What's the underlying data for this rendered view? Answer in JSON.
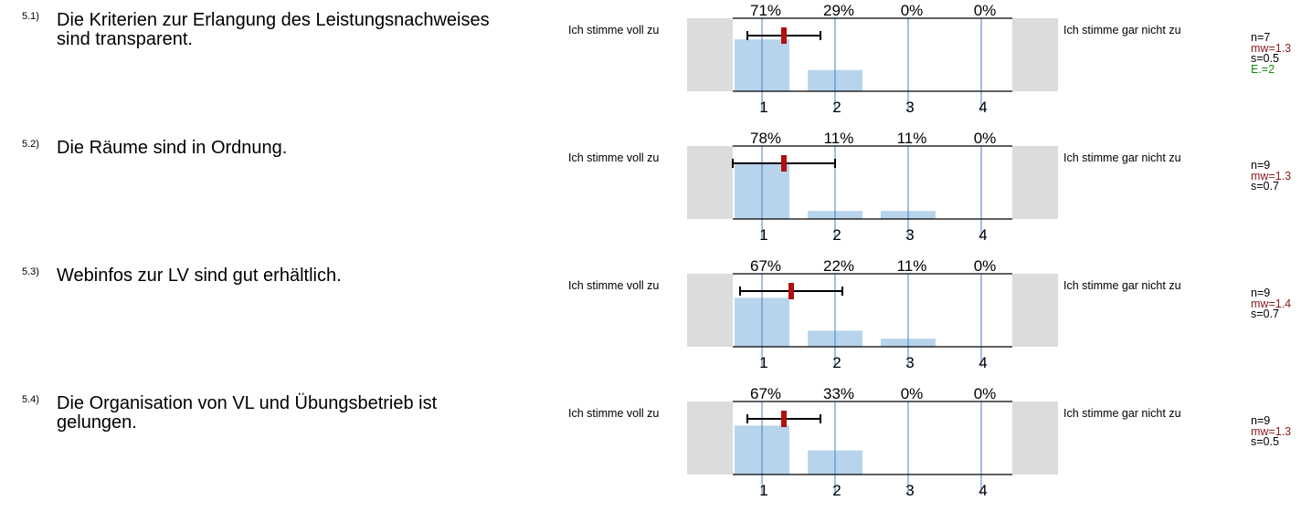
{
  "colors": {
    "bar": "#b7d4ec",
    "gray_box": "#dcdcdc",
    "grid_line": "#4a7fc0",
    "mean_marker": "#b01010",
    "mw_text": "#8b1a1a",
    "e_text": "#1a8c1a"
  },
  "scale": {
    "left_label": "Ich stimme voll zu",
    "right_label": "Ich stimme gar nicht zu",
    "ticks": [
      "1",
      "2",
      "3",
      "4"
    ]
  },
  "chart_data": [
    {
      "type": "bar",
      "number": "5.1)",
      "question": "Die Kriterien zur Erlangung des Leistungsnachweises sind transparent.",
      "categories": [
        "1",
        "2",
        "3",
        "4"
      ],
      "values": [
        71,
        29,
        0,
        0
      ],
      "labels": [
        "71%",
        "29%",
        "0%",
        "0%"
      ],
      "mean": 1.3,
      "sd": 0.5,
      "ylim": [
        0,
        100
      ],
      "stats": {
        "n": "n=7",
        "mw": "mw=1.3",
        "s": "s=0.5",
        "e": "E.=2"
      }
    },
    {
      "type": "bar",
      "number": "5.2)",
      "question": "Die Räume sind in Ordnung.",
      "categories": [
        "1",
        "2",
        "3",
        "4"
      ],
      "values": [
        78,
        11,
        11,
        0
      ],
      "labels": [
        "78%",
        "11%",
        "11%",
        "0%"
      ],
      "mean": 1.3,
      "sd": 0.7,
      "ylim": [
        0,
        100
      ],
      "stats": {
        "n": "n=9",
        "mw": "mw=1.3",
        "s": "s=0.7"
      }
    },
    {
      "type": "bar",
      "number": "5.3)",
      "question": "Webinfos zur LV sind gut erhältlich.",
      "categories": [
        "1",
        "2",
        "3",
        "4"
      ],
      "values": [
        67,
        22,
        11,
        0
      ],
      "labels": [
        "67%",
        "22%",
        "11%",
        "0%"
      ],
      "mean": 1.4,
      "sd": 0.7,
      "ylim": [
        0,
        100
      ],
      "stats": {
        "n": "n=9",
        "mw": "mw=1.4",
        "s": "s=0.7"
      }
    },
    {
      "type": "bar",
      "number": "5.4)",
      "question": "Die Organisation von VL und Übungsbetrieb ist gelungen.",
      "categories": [
        "1",
        "2",
        "3",
        "4"
      ],
      "values": [
        67,
        33,
        0,
        0
      ],
      "labels": [
        "67%",
        "33%",
        "0%",
        "0%"
      ],
      "mean": 1.3,
      "sd": 0.5,
      "ylim": [
        0,
        100
      ],
      "stats": {
        "n": "n=9",
        "mw": "mw=1.3",
        "s": "s=0.5"
      }
    }
  ]
}
